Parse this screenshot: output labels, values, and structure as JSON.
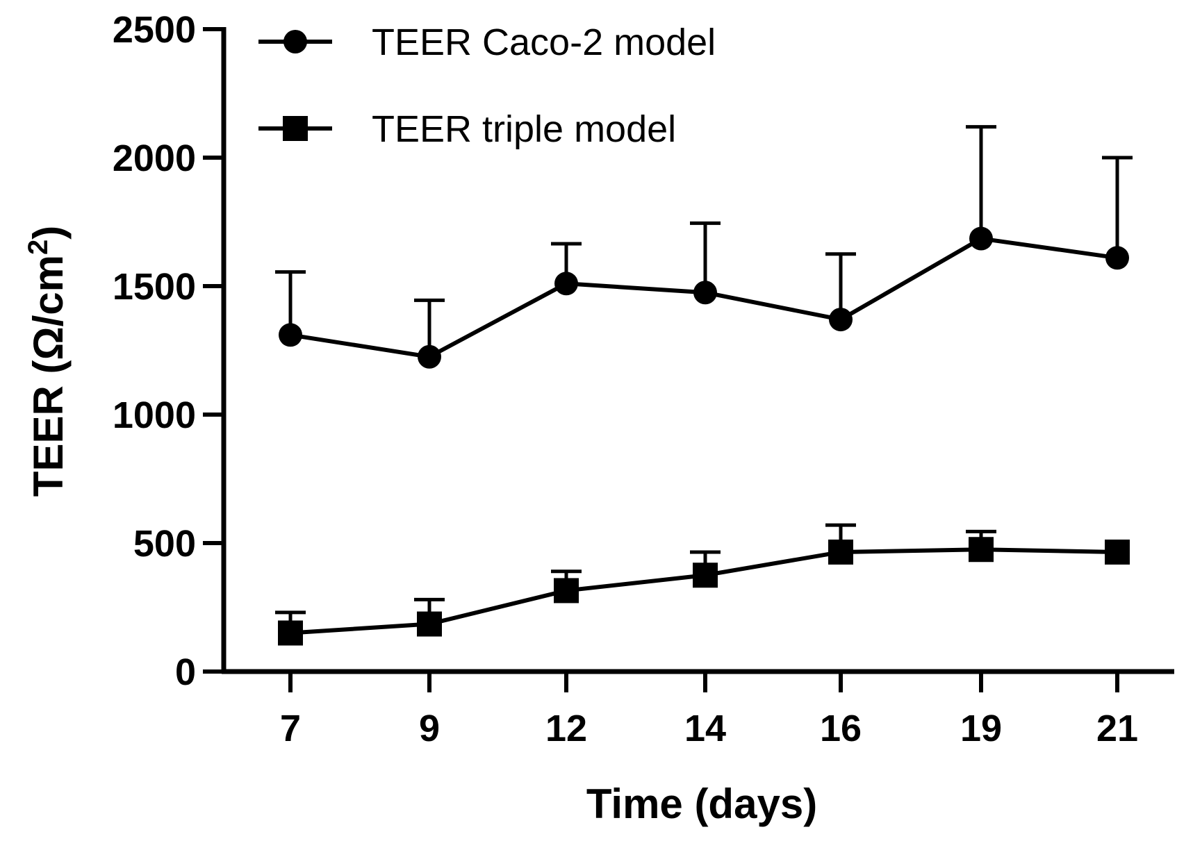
{
  "chart_data": {
    "type": "line",
    "title": "",
    "xlabel": "Time (days)",
    "ylabel_main": "TEER (Ω/cm",
    "ylabel_sup": "2",
    "ylabel_close": ")",
    "categories": [
      "7",
      "9",
      "12",
      "14",
      "16",
      "19",
      "21"
    ],
    "ylim": [
      0,
      2500
    ],
    "yticks": [
      "0",
      "500",
      "1000",
      "1500",
      "2000",
      "2500"
    ],
    "grid": false,
    "legend_position": "top-left",
    "series": [
      {
        "name": "TEER Caco-2 model",
        "marker": "circle",
        "values": [
          1310,
          1225,
          1510,
          1475,
          1370,
          1685,
          1610
        ],
        "error_upper": [
          1555,
          1445,
          1665,
          1745,
          1625,
          2120,
          2000
        ]
      },
      {
        "name": "TEER triple model",
        "marker": "square",
        "values": [
          150,
          185,
          315,
          375,
          465,
          475,
          465
        ],
        "error_upper": [
          230,
          280,
          390,
          465,
          570,
          545,
          465
        ]
      }
    ]
  }
}
